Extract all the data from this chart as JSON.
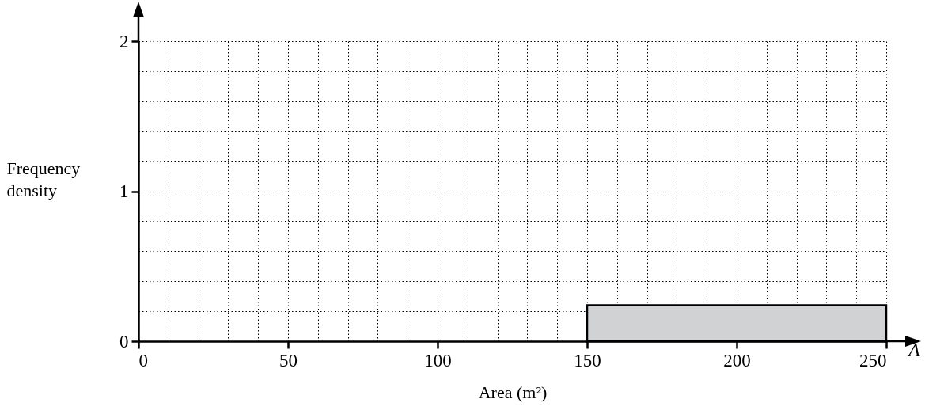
{
  "chart_data": {
    "type": "histogram",
    "xlabel": "Area (m²)",
    "ylabel": "Frequency density",
    "bins": [
      150,
      250
    ],
    "values": [
      0.24
    ],
    "color": "#d1d2d4",
    "xlim": [
      0,
      250
    ],
    "ylim": [
      0,
      2
    ],
    "xticks": [
      0,
      {
        "value": 10,
        "label": null
      },
      {
        "value": 20,
        "label": null
      },
      {
        "value": 30,
        "label": null
      },
      {
        "value": 40,
        "label": null
      },
      50,
      {
        "value": 60,
        "label": null
      },
      {
        "value": 70,
        "label": null
      },
      {
        "value": 80,
        "label": null
      },
      {
        "value": 90,
        "label": null
      },
      100,
      {
        "value": 110,
        "label": null
      },
      {
        "value": 120,
        "label": null
      },
      {
        "value": 130,
        "label": null
      },
      {
        "value": 140,
        "label": null
      },
      150,
      {
        "value": 160,
        "label": null
      },
      {
        "value": 170,
        "label": null
      },
      {
        "value": 180,
        "label": null
      },
      {
        "value": 190,
        "label": null
      },
      200,
      {
        "value": 210,
        "label": null
      },
      {
        "value": 220,
        "label": null
      },
      {
        "value": 230,
        "label": null
      },
      {
        "value": 240,
        "label": null
      },
      250
    ],
    "yticks": [
      0,
      {
        "value": 0.2,
        "label": null
      },
      {
        "value": 0.4,
        "label": null
      },
      {
        "value": 0.6,
        "label": null
      },
      {
        "value": 0.8,
        "label": null
      },
      1,
      {
        "value": 1.2,
        "label": null
      },
      {
        "value": 1.4,
        "label": null
      },
      {
        "value": 1.6,
        "label": null
      },
      {
        "value": 1.8,
        "label": null
      },
      2
    ],
    "grid": true,
    "annotations": [
      "A"
    ]
  }
}
